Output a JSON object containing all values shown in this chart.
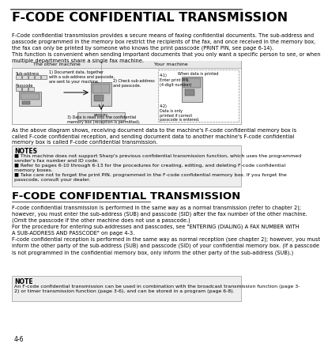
{
  "title": "F-CODE CONFIDENTIAL TRANSMISSION",
  "title_fontsize": 11.5,
  "body_fontsize": 4.8,
  "small_fontsize": 4.5,
  "note_title_fontsize": 5.5,
  "bg_color": "#ffffff",
  "gray_box_bg": "#e8e8e8",
  "intro_text": "F-Code confidential transmission provides a secure means of faxing confidential documents. The sub-address and\npasscode programmed in the memory box restrict the recipients of the fax, and once received in the memory box,\nthe fax can only be printed by someone who knows the print passcode (PRINT PIN, see page 6-14).\nThis function is convenient when sending important documents that you only want a specific person to see, or when\nmultiple departments share a single fax machine.",
  "diagram_caption": "As the above diagram shows, receiving document data to the machine's F-code confidential memory box is\ncalled F-code confidential reception, and sending document data to another machine's F-code confidential\nmemory box is called F-code confidential transmission.",
  "notes_title": "NOTES",
  "notes": [
    "This machine does not support Sharp's previous confidential transmission function, which uses the programmed\nsender's fax number and ID code.",
    "Refer to pages 6-10 through 6-13 for the procedures for creating, editing, and deleting F-code confidential\nmemory boxes.",
    "Take care not to forget the print PIN. programmed in the F-code confidential memory box. If you forget the\npasscode, consult your dealer."
  ],
  "section2_title": "F-CODE CONFIDENTIAL TRANSMISSION",
  "section2_title_fontsize": 9.5,
  "section2_text": "F-code confidential transmission is performed in the same way as a normal transmission (refer to chapter 2);\nhowever, you must enter the sub-address (SUB) and passcode (SID) after the fax number of the other machine.\n(Omit the passcode if the other machine does not use a passcode.)\nFor the procedure for entering sub-addresses and passcodes, see \"ENTERING (DIALING) A FAX NUMBER WITH\nA SUB-ADDRESS AND PASSCODE\" on page 4-3.\nF-code confidential reception is performed in the same way as normal reception (see chapter 2); however, you must\ninform the other party of the sub-address (SUB) and passcode (SID) of your confidential memory box. (If a passcode\nis not programmed in the confidential memory box, only inform the other party of the sub-address (SUB).)",
  "note2_title": "NOTE",
  "note2_text": "An F-code confidential transmission can be used in combination with the broadcast transmission function (page 3-\n2) or timer transmission function (page 3-6), and can be stored in a program (page 6-8).",
  "page_label": "4-6",
  "diagram_left_label": "The other machine",
  "diagram_right_label": "Your machine",
  "diagram_when_printed": "When data is printed",
  "diagram_step1": "1) Document data, together\nwith a sub-address and passcode,\nare sent to your machine.",
  "diagram_sub_address": "Sub-address",
  "diagram_passcode": "Passcode",
  "diagram_step2": "2) Check sub-address\nand passcode.",
  "diagram_step3": "3) Data is read into the confidential\nmemory box (reception is permitted).",
  "diagram_step4_1": "4-1)\nEnter print PIN.\n(4-digit number)",
  "diagram_step4_2": "4-2)\nData is only\nprinted if correct\npasscode is entered."
}
